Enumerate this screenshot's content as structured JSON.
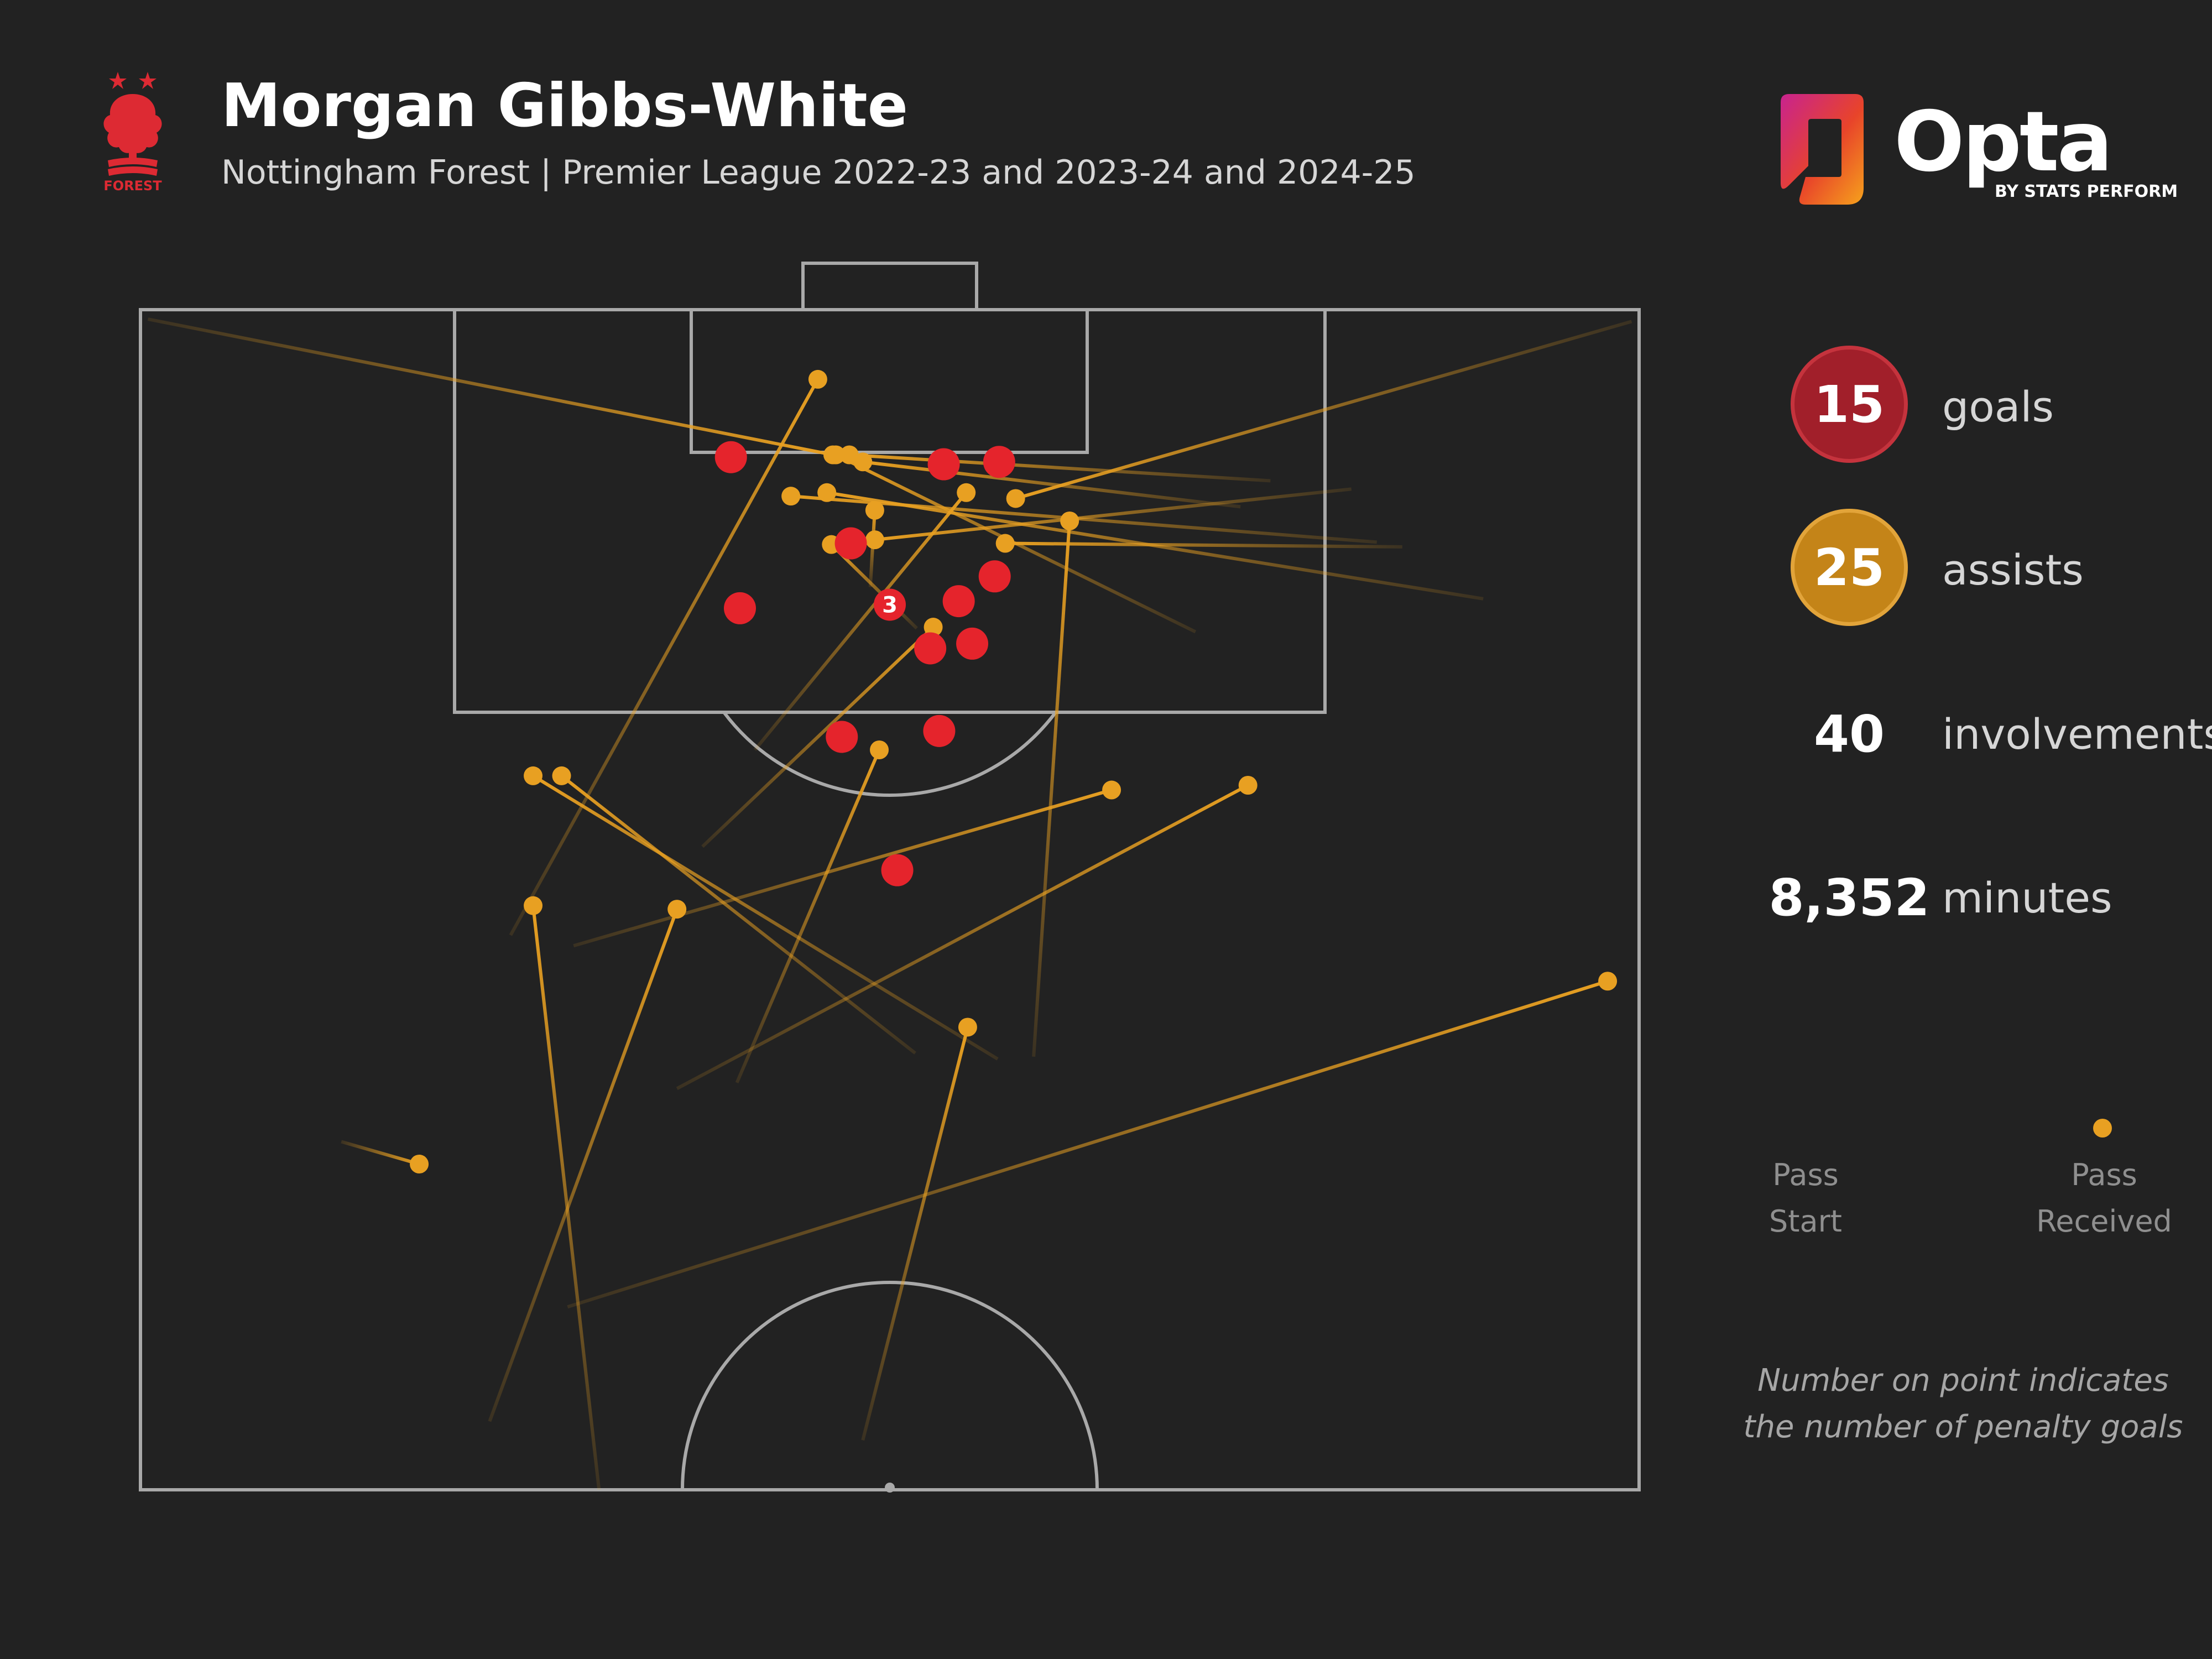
{
  "header": {
    "title": "Morgan Gibbs-White",
    "subtitle": "Nottingham Forest | Premier League 2022-23 and 2023-24 and 2024-25",
    "club_crest_text": "FOREST"
  },
  "brand": {
    "name": "Opta",
    "byline": "BY STATS PERFORM"
  },
  "stats": {
    "goals": {
      "value": "15",
      "label": "goals"
    },
    "assists": {
      "value": "25",
      "label": "assists"
    },
    "involvements": {
      "value": "40",
      "label": "involvements"
    },
    "minutes": {
      "value": "8,352",
      "label": "minutes"
    }
  },
  "legend": {
    "pass_start": "Pass\nStart",
    "pass_received": "Pass\nReceived"
  },
  "note": "Number on point indicates the number of penalty goals",
  "colors": {
    "background": "#222222",
    "goal": "#e5242c",
    "goal_badge": "#a11f2a",
    "assist": "#e8a022",
    "assist_badge": "#c48418",
    "pitch_lines": "#a9a9a9"
  },
  "chart_data": {
    "type": "scatter",
    "goals": [
      {
        "x": 0.394,
        "y": 0.875,
        "penalties": 0
      },
      {
        "x": 0.536,
        "y": 0.869,
        "penalties": 0
      },
      {
        "x": 0.573,
        "y": 0.871,
        "penalties": 0
      },
      {
        "x": 0.474,
        "y": 0.802,
        "penalties": 0
      },
      {
        "x": 0.57,
        "y": 0.774,
        "penalties": 0
      },
      {
        "x": 0.546,
        "y": 0.753,
        "penalties": 0
      },
      {
        "x": 0.4,
        "y": 0.747,
        "penalties": 0
      },
      {
        "x": 0.5,
        "y": 0.75,
        "penalties": 3
      },
      {
        "x": 0.527,
        "y": 0.713,
        "penalties": 0
      },
      {
        "x": 0.555,
        "y": 0.717,
        "penalties": 0
      },
      {
        "x": 0.468,
        "y": 0.638,
        "penalties": 0
      },
      {
        "x": 0.533,
        "y": 0.643,
        "penalties": 0
      },
      {
        "x": 0.505,
        "y": 0.525,
        "penalties": 0
      }
    ],
    "assists": [
      {
        "sx": 0.005,
        "sy": 0.992,
        "ex": 0.462,
        "ey": 0.877
      },
      {
        "sx": 0.995,
        "sy": 0.99,
        "ex": 0.584,
        "ey": 0.84
      },
      {
        "sx": 0.754,
        "sy": 0.855,
        "ex": 0.473,
        "ey": 0.877
      },
      {
        "sx": 0.734,
        "sy": 0.833,
        "ex": 0.482,
        "ey": 0.871
      },
      {
        "sx": 0.896,
        "sy": 0.755,
        "ex": 0.458,
        "ey": 0.845
      },
      {
        "sx": 0.808,
        "sy": 0.848,
        "ex": 0.49,
        "ey": 0.805
      },
      {
        "sx": 0.825,
        "sy": 0.803,
        "ex": 0.434,
        "ey": 0.842
      },
      {
        "sx": 0.704,
        "sy": 0.727,
        "ex": 0.464,
        "ey": 0.877
      },
      {
        "sx": 0.842,
        "sy": 0.799,
        "ex": 0.577,
        "ey": 0.802
      },
      {
        "sx": 0.518,
        "sy": 0.73,
        "ex": 0.461,
        "ey": 0.801
      },
      {
        "sx": 0.487,
        "sy": 0.765,
        "ex": 0.49,
        "ey": 0.83
      },
      {
        "sx": 0.41,
        "sy": 0.627,
        "ex": 0.551,
        "ey": 0.845
      },
      {
        "sx": 0.375,
        "sy": 0.545,
        "ex": 0.529,
        "ey": 0.731
      },
      {
        "sx": 0.596,
        "sy": 0.367,
        "ex": 0.62,
        "ey": 0.821
      },
      {
        "sx": 0.247,
        "sy": 0.47,
        "ex": 0.452,
        "ey": 0.941
      },
      {
        "sx": 0.398,
        "sy": 0.345,
        "ex": 0.493,
        "ey": 0.627
      },
      {
        "sx": 0.572,
        "sy": 0.365,
        "ex": 0.262,
        "ey": 0.605
      },
      {
        "sx": 0.517,
        "sy": 0.37,
        "ex": 0.281,
        "ey": 0.605
      },
      {
        "sx": 0.289,
        "sy": 0.461,
        "ex": 0.648,
        "ey": 0.593
      },
      {
        "sx": 0.358,
        "sy": 0.34,
        "ex": 0.739,
        "ey": 0.597
      },
      {
        "sx": 0.134,
        "sy": 0.295,
        "ex": 0.186,
        "ey": 0.276
      },
      {
        "sx": 0.233,
        "sy": 0.058,
        "ex": 0.358,
        "ey": 0.492
      },
      {
        "sx": 0.482,
        "sy": 0.042,
        "ex": 0.552,
        "ey": 0.392
      },
      {
        "sx": 0.306,
        "sy": 0.0,
        "ex": 0.262,
        "ey": 0.495
      },
      {
        "sx": 0.285,
        "sy": 0.155,
        "ex": 0.979,
        "ey": 0.431
      }
    ]
  }
}
